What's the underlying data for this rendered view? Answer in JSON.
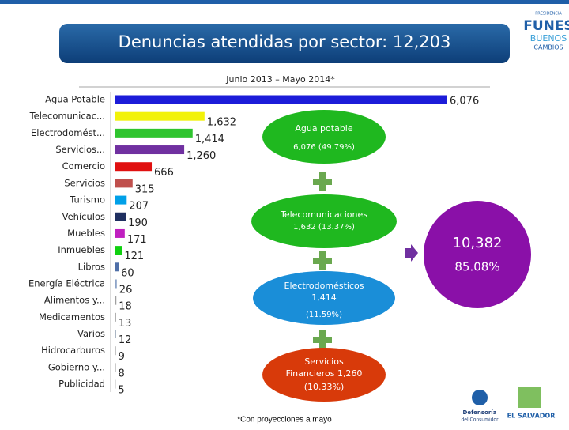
{
  "header": {
    "title": "Denuncias atendidas por sector: 12,203",
    "subtitle": "Junio 2013 – Mayo 2014*",
    "logo_top": "PRESIDENCIA",
    "logo_main": "FUNES",
    "logo_sub1": "BUENOS",
    "logo_sub2": "CAMBIOS"
  },
  "chart_data": {
    "type": "bar",
    "orientation": "horizontal",
    "categories": [
      "Agua Potable",
      "Telecomunicac...",
      "Electrodomést...",
      "Servicios...",
      "Comercio",
      "Servicios",
      "Turismo",
      "Vehículos",
      "Muebles",
      "Inmuebles",
      "Libros",
      "Energía Eléctrica",
      "Alimentos y...",
      "Medicamentos",
      "Varios",
      "Hidrocarburos",
      "Gobierno y...",
      "Publicidad"
    ],
    "values": [
      6076,
      1632,
      1414,
      1260,
      666,
      315,
      207,
      190,
      171,
      121,
      60,
      26,
      18,
      13,
      12,
      9,
      8,
      5
    ],
    "value_labels": [
      "6,076",
      "1,632",
      "1,414",
      "1,260",
      "666",
      "315",
      "207",
      "190",
      "171",
      "121",
      "60",
      "26",
      "18",
      "13",
      "12",
      "9",
      "8",
      "5"
    ],
    "colors": [
      "#1c1cd9",
      "#f2f20a",
      "#2fc42f",
      "#7030a0",
      "#e01010",
      "#c0504d",
      "#00a0e8",
      "#1f2f60",
      "#c020c0",
      "#10d010",
      "#4f6fa8",
      "#8ea4c8",
      "#a0a0a0",
      "#a8a8a8",
      "#9aa8b8",
      "#a0a0a0",
      "#a0a0a0",
      "#a0a0a0"
    ]
  },
  "summary": {
    "agua": {
      "name": "Agua potable",
      "detail": "6,076 (49.79%)"
    },
    "telecom": {
      "name": "Telecomunicaciones",
      "detail": "1,632 (13.37%)"
    },
    "electro": {
      "name": "Electrodomésticos",
      "line2": "1,414",
      "detail": "(11.59%)"
    },
    "servicios": {
      "name": "Servicios",
      "line2": "Financieros 1,260",
      "detail": "(10.33%)"
    },
    "total": {
      "value": "10,382",
      "percent": "85.08%"
    }
  },
  "footer": {
    "note": "*Con proyecciones a mayo",
    "logo_left": "Defensoría",
    "logo_left2": "del Consumidor",
    "logo_right": "EL SALVADOR"
  }
}
